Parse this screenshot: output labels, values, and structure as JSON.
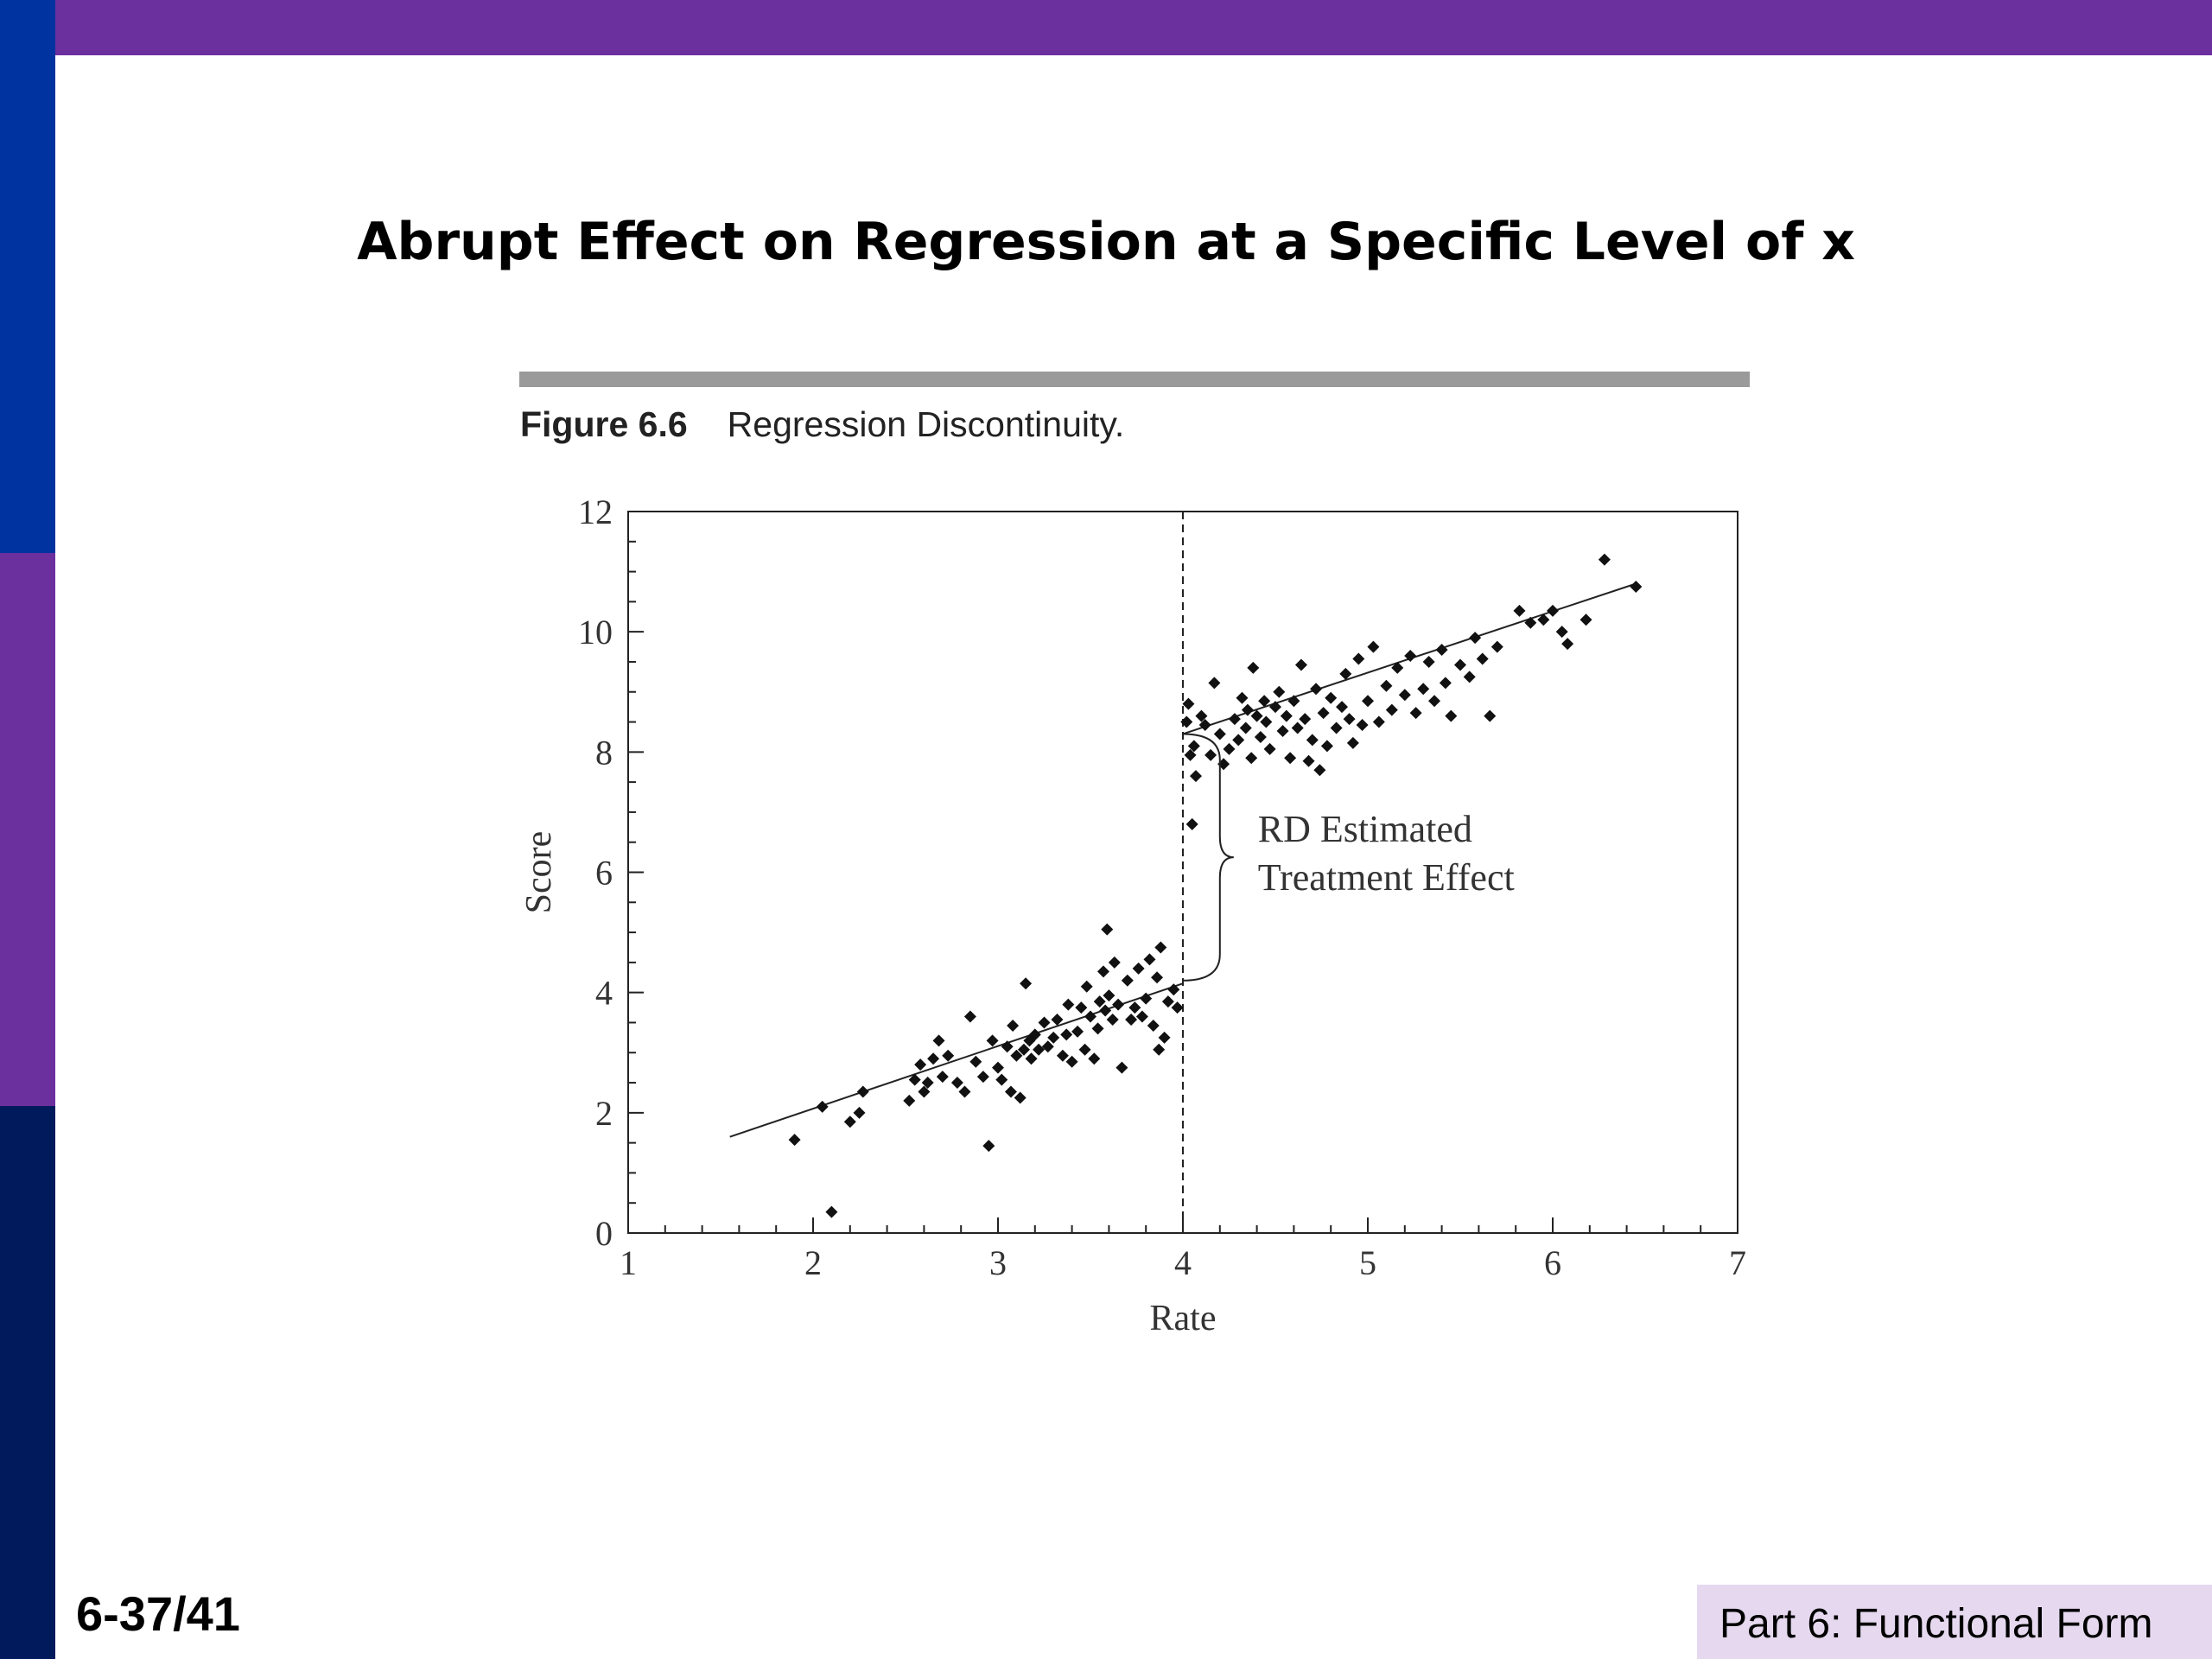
{
  "slide": {
    "title": "Abrupt Effect on Regression at a Specific Level of x",
    "figure_number": "Figure 6.6",
    "figure_caption": "Regression Discontinuity.",
    "slide_number": "6-37/41",
    "footer": "Part 6: Functional Form",
    "colors": {
      "top_bar": "#6b2f9e",
      "side_bar": [
        "#0033a0",
        "#6b2f9e",
        "#001a5c"
      ],
      "footer_box": "#e6d9ef",
      "figure_rule": "#9a9a9a"
    }
  },
  "chart_data": {
    "type": "scatter",
    "title": "",
    "xlabel": "Rate",
    "ylabel": "Score",
    "xlim": [
      1,
      7
    ],
    "ylim": [
      0,
      12
    ],
    "xticks": [
      1,
      2,
      3,
      4,
      5,
      6,
      7
    ],
    "yticks": [
      0,
      2,
      4,
      6,
      8,
      10,
      12
    ],
    "grid": false,
    "legend": "none",
    "cutoff": 4,
    "annotation": {
      "lines": [
        "RD Estimated",
        "Treatment Effect"
      ],
      "brace_x": 4.2,
      "brace_from": 4.2,
      "brace_to": 8.3
    },
    "fit_lines": [
      {
        "name": "below cutoff",
        "x": [
          1.55,
          4.0
        ],
        "y": [
          1.6,
          4.15
        ]
      },
      {
        "name": "above cutoff",
        "x": [
          4.0,
          6.45
        ],
        "y": [
          8.3,
          10.8
        ]
      }
    ],
    "points": [
      [
        1.9,
        1.55
      ],
      [
        2.05,
        2.1
      ],
      [
        2.1,
        0.35
      ],
      [
        2.2,
        1.85
      ],
      [
        2.25,
        2.0
      ],
      [
        2.27,
        2.35
      ],
      [
        2.52,
        2.2
      ],
      [
        2.55,
        2.55
      ],
      [
        2.58,
        2.8
      ],
      [
        2.6,
        2.35
      ],
      [
        2.62,
        2.5
      ],
      [
        2.65,
        2.9
      ],
      [
        2.68,
        3.2
      ],
      [
        2.7,
        2.6
      ],
      [
        2.73,
        2.95
      ],
      [
        2.78,
        2.5
      ],
      [
        2.82,
        2.35
      ],
      [
        2.85,
        3.6
      ],
      [
        2.88,
        2.85
      ],
      [
        2.92,
        2.6
      ],
      [
        2.95,
        1.45
      ],
      [
        2.97,
        3.2
      ],
      [
        3.0,
        2.75
      ],
      [
        3.02,
        2.55
      ],
      [
        3.05,
        3.1
      ],
      [
        3.07,
        2.35
      ],
      [
        3.08,
        3.45
      ],
      [
        3.1,
        2.95
      ],
      [
        3.12,
        2.25
      ],
      [
        3.14,
        3.05
      ],
      [
        3.15,
        4.15
      ],
      [
        3.17,
        3.2
      ],
      [
        3.18,
        2.9
      ],
      [
        3.2,
        3.3
      ],
      [
        3.22,
        3.05
      ],
      [
        3.25,
        3.5
      ],
      [
        3.27,
        3.1
      ],
      [
        3.3,
        3.25
      ],
      [
        3.32,
        3.55
      ],
      [
        3.35,
        2.95
      ],
      [
        3.37,
        3.3
      ],
      [
        3.38,
        3.8
      ],
      [
        3.4,
        2.85
      ],
      [
        3.43,
        3.35
      ],
      [
        3.45,
        3.75
      ],
      [
        3.47,
        3.05
      ],
      [
        3.48,
        4.1
      ],
      [
        3.5,
        3.6
      ],
      [
        3.52,
        2.9
      ],
      [
        3.54,
        3.4
      ],
      [
        3.55,
        3.85
      ],
      [
        3.57,
        4.35
      ],
      [
        3.58,
        3.7
      ],
      [
        3.59,
        5.05
      ],
      [
        3.6,
        3.95
      ],
      [
        3.62,
        3.55
      ],
      [
        3.63,
        4.5
      ],
      [
        3.65,
        3.8
      ],
      [
        3.67,
        2.75
      ],
      [
        3.7,
        4.2
      ],
      [
        3.72,
        3.55
      ],
      [
        3.74,
        3.75
      ],
      [
        3.76,
        4.4
      ],
      [
        3.78,
        3.6
      ],
      [
        3.8,
        3.9
      ],
      [
        3.82,
        4.55
      ],
      [
        3.84,
        3.45
      ],
      [
        3.86,
        4.25
      ],
      [
        3.87,
        3.05
      ],
      [
        3.88,
        4.75
      ],
      [
        3.9,
        3.25
      ],
      [
        3.92,
        3.85
      ],
      [
        3.95,
        4.05
      ],
      [
        3.97,
        3.75
      ],
      [
        4.02,
        8.5
      ],
      [
        4.03,
        8.8
      ],
      [
        4.04,
        7.95
      ],
      [
        4.05,
        6.8
      ],
      [
        4.06,
        8.1
      ],
      [
        4.07,
        7.6
      ],
      [
        4.1,
        8.6
      ],
      [
        4.12,
        8.45
      ],
      [
        4.15,
        7.95
      ],
      [
        4.17,
        9.15
      ],
      [
        4.2,
        8.3
      ],
      [
        4.22,
        7.8
      ],
      [
        4.25,
        8.05
      ],
      [
        4.28,
        8.55
      ],
      [
        4.3,
        8.2
      ],
      [
        4.32,
        8.9
      ],
      [
        4.34,
        8.4
      ],
      [
        4.35,
        8.7
      ],
      [
        4.37,
        7.9
      ],
      [
        4.38,
        9.4
      ],
      [
        4.4,
        8.6
      ],
      [
        4.42,
        8.25
      ],
      [
        4.44,
        8.85
      ],
      [
        4.45,
        8.5
      ],
      [
        4.47,
        8.05
      ],
      [
        4.5,
        8.75
      ],
      [
        4.52,
        9.0
      ],
      [
        4.54,
        8.35
      ],
      [
        4.56,
        8.6
      ],
      [
        4.58,
        7.9
      ],
      [
        4.6,
        8.85
      ],
      [
        4.62,
        8.4
      ],
      [
        4.64,
        9.45
      ],
      [
        4.66,
        8.55
      ],
      [
        4.68,
        7.85
      ],
      [
        4.7,
        8.2
      ],
      [
        4.72,
        9.05
      ],
      [
        4.74,
        7.7
      ],
      [
        4.76,
        8.65
      ],
      [
        4.78,
        8.1
      ],
      [
        4.8,
        8.9
      ],
      [
        4.83,
        8.4
      ],
      [
        4.86,
        8.75
      ],
      [
        4.88,
        9.3
      ],
      [
        4.9,
        8.55
      ],
      [
        4.92,
        8.15
      ],
      [
        4.95,
        9.55
      ],
      [
        4.97,
        8.45
      ],
      [
        5.0,
        8.85
      ],
      [
        5.03,
        9.75
      ],
      [
        5.06,
        8.5
      ],
      [
        5.1,
        9.1
      ],
      [
        5.13,
        8.7
      ],
      [
        5.16,
        9.4
      ],
      [
        5.2,
        8.95
      ],
      [
        5.23,
        9.6
      ],
      [
        5.26,
        8.65
      ],
      [
        5.3,
        9.05
      ],
      [
        5.33,
        9.5
      ],
      [
        5.36,
        8.85
      ],
      [
        5.4,
        9.7
      ],
      [
        5.42,
        9.15
      ],
      [
        5.45,
        8.6
      ],
      [
        5.5,
        9.45
      ],
      [
        5.55,
        9.25
      ],
      [
        5.58,
        9.9
      ],
      [
        5.62,
        9.55
      ],
      [
        5.66,
        8.6
      ],
      [
        5.7,
        9.75
      ],
      [
        5.82,
        10.35
      ],
      [
        5.88,
        10.15
      ],
      [
        5.95,
        10.2
      ],
      [
        6.0,
        10.35
      ],
      [
        6.05,
        10.0
      ],
      [
        6.08,
        9.8
      ],
      [
        6.18,
        10.2
      ],
      [
        6.28,
        11.2
      ],
      [
        6.45,
        10.75
      ]
    ]
  }
}
